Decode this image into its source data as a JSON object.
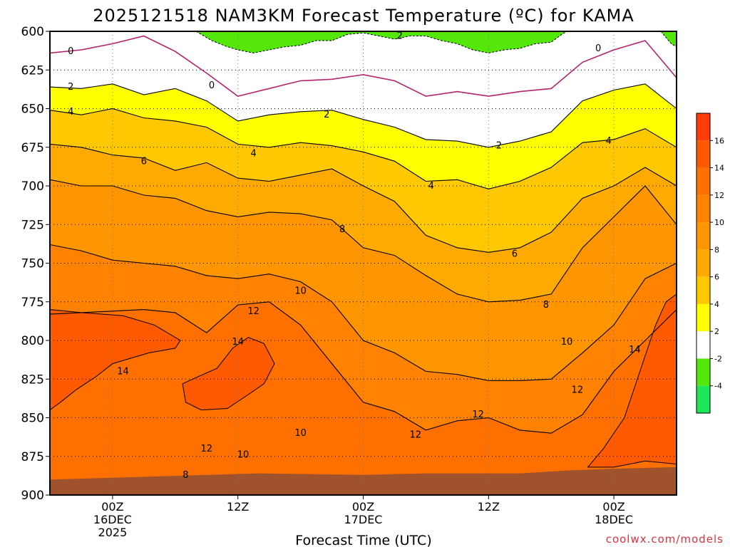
{
  "chart_data": {
    "type": "heatmap",
    "title": "2025121518 NAM3KM Forecast Temperature (ºC) for KAMA",
    "xlabel": "Forecast Time (UTC)",
    "ylabel": "",
    "y_unit": "hPa",
    "y_ticks": [
      600,
      625,
      650,
      675,
      700,
      725,
      750,
      775,
      800,
      825,
      850,
      875,
      900
    ],
    "ylim": [
      900,
      600
    ],
    "x_unit": "hours since 2025-12-15 18Z",
    "xlim": [
      0,
      60
    ],
    "x_ticks": [
      {
        "hour": 6,
        "lines": [
          "00Z",
          "16DEC",
          "2025"
        ]
      },
      {
        "hour": 18,
        "lines": [
          "12Z"
        ]
      },
      {
        "hour": 30,
        "lines": [
          "00Z",
          "17DEC"
        ]
      },
      {
        "hour": 42,
        "lines": [
          "12Z"
        ]
      },
      {
        "hour": 54,
        "lines": [
          "00Z",
          "18DEC"
        ]
      }
    ],
    "grid": true,
    "colorbar": {
      "labels": [
        "16",
        "14",
        "12",
        "10",
        "8",
        "6",
        "4",
        "2",
        "-2",
        "-4"
      ],
      "bands": [
        {
          "range": [
            16,
            18
          ],
          "color": "#ff3c0a"
        },
        {
          "range": [
            14,
            16
          ],
          "color": "#ff5a00"
        },
        {
          "range": [
            12,
            14
          ],
          "color": "#ff7000"
        },
        {
          "range": [
            10,
            12
          ],
          "color": "#ff8200"
        },
        {
          "range": [
            8,
            10
          ],
          "color": "#ff9600"
        },
        {
          "range": [
            6,
            8
          ],
          "color": "#ffaa00"
        },
        {
          "range": [
            4,
            6
          ],
          "color": "#ffc800"
        },
        {
          "range": [
            2,
            4
          ],
          "color": "#ffff00"
        },
        {
          "range": [
            -2,
            2
          ],
          "color": "#ffffff"
        },
        {
          "range": [
            -4,
            -2
          ],
          "color": "#55e60a"
        },
        {
          "range": [
            -6,
            -4
          ],
          "color": "#1ee65a"
        }
      ]
    },
    "surface_color": "#a0522d",
    "freezing_line_color": "#b4226e",
    "band_fills": [
      "#ffc800",
      "#ffaa00",
      "#ff9600",
      "#ff8200",
      "#ff7000"
    ],
    "contours": [
      {
        "level": 0,
        "color": "#b4226e",
        "points": [
          [
            0,
            614
          ],
          [
            3,
            612
          ],
          [
            6,
            608
          ],
          [
            9,
            603
          ],
          [
            12,
            613
          ],
          [
            15,
            627
          ],
          [
            18,
            642
          ],
          [
            21,
            637
          ],
          [
            24,
            632
          ],
          [
            27,
            631
          ],
          [
            30,
            628
          ],
          [
            33,
            632
          ],
          [
            36,
            642
          ],
          [
            39,
            639
          ],
          [
            42,
            642
          ],
          [
            45,
            639
          ],
          [
            48,
            637
          ],
          [
            51,
            620
          ],
          [
            54,
            612
          ],
          [
            57,
            606
          ],
          [
            60,
            630
          ]
        ]
      },
      {
        "level": 2,
        "color": "#000000",
        "points": [
          [
            0,
            636
          ],
          [
            3,
            637
          ],
          [
            6,
            634
          ],
          [
            9,
            641
          ],
          [
            12,
            637
          ],
          [
            15,
            645
          ],
          [
            18,
            658
          ],
          [
            21,
            654
          ],
          [
            24,
            652
          ],
          [
            27,
            651
          ],
          [
            30,
            657
          ],
          [
            33,
            662
          ],
          [
            36,
            670
          ],
          [
            39,
            671
          ],
          [
            42,
            675
          ],
          [
            45,
            671
          ],
          [
            48,
            665
          ],
          [
            51,
            645
          ],
          [
            54,
            638
          ],
          [
            57,
            634
          ],
          [
            60,
            650
          ]
        ]
      },
      {
        "level": 4,
        "color": "#000000",
        "points": [
          [
            0,
            651
          ],
          [
            3,
            654
          ],
          [
            6,
            650
          ],
          [
            9,
            656
          ],
          [
            12,
            658
          ],
          [
            15,
            662
          ],
          [
            18,
            673
          ],
          [
            21,
            675
          ],
          [
            24,
            672
          ],
          [
            27,
            674
          ],
          [
            30,
            678
          ],
          [
            33,
            684
          ],
          [
            36,
            697
          ],
          [
            39,
            696
          ],
          [
            42,
            702
          ],
          [
            45,
            697
          ],
          [
            48,
            688
          ],
          [
            51,
            672
          ],
          [
            54,
            670
          ],
          [
            57,
            663
          ],
          [
            60,
            675
          ]
        ]
      },
      {
        "level": 6,
        "color": "#000000",
        "points": [
          [
            0,
            673
          ],
          [
            3,
            675
          ],
          [
            6,
            680
          ],
          [
            9,
            682
          ],
          [
            12,
            690
          ],
          [
            15,
            685
          ],
          [
            18,
            695
          ],
          [
            21,
            697
          ],
          [
            24,
            693
          ],
          [
            27,
            689
          ],
          [
            30,
            700
          ],
          [
            33,
            710
          ],
          [
            36,
            732
          ],
          [
            39,
            740
          ],
          [
            42,
            743
          ],
          [
            45,
            740
          ],
          [
            48,
            730
          ],
          [
            51,
            708
          ],
          [
            54,
            700
          ],
          [
            57,
            688
          ],
          [
            60,
            700
          ]
        ]
      },
      {
        "level": 8,
        "color": "#000000",
        "points": [
          [
            0,
            696
          ],
          [
            3,
            700
          ],
          [
            6,
            700
          ],
          [
            9,
            706
          ],
          [
            12,
            708
          ],
          [
            15,
            716
          ],
          [
            18,
            720
          ],
          [
            21,
            717
          ],
          [
            24,
            718
          ],
          [
            27,
            722
          ],
          [
            30,
            740
          ],
          [
            33,
            745
          ],
          [
            36,
            758
          ],
          [
            39,
            770
          ],
          [
            42,
            775
          ],
          [
            45,
            774
          ],
          [
            48,
            770
          ],
          [
            51,
            740
          ],
          [
            54,
            720
          ],
          [
            57,
            700
          ],
          [
            60,
            725
          ]
        ]
      },
      {
        "level": 10,
        "color": "#000000",
        "points": [
          [
            0,
            738
          ],
          [
            3,
            742
          ],
          [
            6,
            748
          ],
          [
            9,
            750
          ],
          [
            12,
            752
          ],
          [
            15,
            758
          ],
          [
            18,
            760
          ],
          [
            21,
            757
          ],
          [
            24,
            762
          ],
          [
            27,
            775
          ],
          [
            30,
            800
          ],
          [
            33,
            808
          ],
          [
            36,
            820
          ],
          [
            39,
            822
          ],
          [
            42,
            826
          ],
          [
            45,
            826
          ],
          [
            48,
            825
          ],
          [
            51,
            808
          ],
          [
            54,
            790
          ],
          [
            57,
            760
          ],
          [
            60,
            750
          ]
        ]
      },
      {
        "level": 12,
        "color": "#000000",
        "points": [
          [
            0,
            783
          ],
          [
            3,
            782
          ],
          [
            6,
            781
          ],
          [
            9,
            780
          ],
          [
            12,
            782
          ],
          [
            15,
            795
          ],
          [
            18,
            777
          ],
          [
            21,
            775
          ],
          [
            24,
            790
          ],
          [
            27,
            815
          ],
          [
            30,
            840
          ],
          [
            33,
            846
          ],
          [
            36,
            858
          ],
          [
            39,
            852
          ],
          [
            42,
            850
          ],
          [
            45,
            858
          ],
          [
            48,
            860
          ],
          [
            51,
            848
          ],
          [
            54,
            820
          ],
          [
            57,
            800
          ],
          [
            60,
            780
          ]
        ]
      }
    ],
    "label_positions": [
      {
        "text": "0",
        "x": 2,
        "p": 613
      },
      {
        "text": "0",
        "x": 15.5,
        "p": 635
      },
      {
        "text": "0",
        "x": 52.5,
        "p": 611
      },
      {
        "text": "2",
        "x": 2,
        "p": 636
      },
      {
        "text": "2",
        "x": 26.5,
        "p": 654
      },
      {
        "text": "2",
        "x": 33.5,
        "p": 603
      },
      {
        "text": "2",
        "x": 43,
        "p": 674
      },
      {
        "text": "4",
        "x": 2,
        "p": 652
      },
      {
        "text": "4",
        "x": 19.5,
        "p": 679
      },
      {
        "text": "4",
        "x": 36.5,
        "p": 700
      },
      {
        "text": "4",
        "x": 53.5,
        "p": 671
      },
      {
        "text": "6",
        "x": 9,
        "p": 684
      },
      {
        "text": "6",
        "x": 44.5,
        "p": 744
      },
      {
        "text": "8",
        "x": 28,
        "p": 728
      },
      {
        "text": "8",
        "x": 47.5,
        "p": 777
      },
      {
        "text": "8",
        "x": 13,
        "p": 887
      },
      {
        "text": "10",
        "x": 24,
        "p": 768
      },
      {
        "text": "10",
        "x": 49.5,
        "p": 801
      },
      {
        "text": "10",
        "x": 24,
        "p": 860
      },
      {
        "text": "10",
        "x": 18.5,
        "p": 874
      },
      {
        "text": "12",
        "x": 19.5,
        "p": 781
      },
      {
        "text": "12",
        "x": 50.5,
        "p": 832
      },
      {
        "text": "12",
        "x": 41,
        "p": 848
      },
      {
        "text": "12",
        "x": 35,
        "p": 861
      },
      {
        "text": "12",
        "x": 15,
        "p": 870
      },
      {
        "text": "14",
        "x": 18,
        "p": 801
      },
      {
        "text": "14",
        "x": 7,
        "p": 820
      },
      {
        "text": "14",
        "x": 56,
        "p": 806
      }
    ],
    "warm_cores": [
      {
        "level": 14,
        "color": "#ff5a00",
        "points": [
          [
            0,
            845
          ],
          [
            1,
            840
          ],
          [
            2.5,
            832
          ],
          [
            4.5,
            823
          ],
          [
            6,
            815
          ],
          [
            7.5,
            812
          ],
          [
            9.5,
            808
          ],
          [
            12,
            805
          ],
          [
            12.5,
            800
          ],
          [
            10,
            790
          ],
          [
            7,
            784
          ],
          [
            3,
            782
          ],
          [
            0,
            780
          ]
        ]
      },
      {
        "level": 14,
        "color": "#ff5a00",
        "points": [
          [
            12.7,
            828
          ],
          [
            14,
            824
          ],
          [
            16,
            818
          ],
          [
            17.5,
            805
          ],
          [
            19,
            798
          ],
          [
            20.5,
            802
          ],
          [
            21.5,
            815
          ],
          [
            20.5,
            828
          ],
          [
            19,
            835
          ],
          [
            17,
            844
          ],
          [
            14.5,
            845
          ],
          [
            13,
            840
          ]
        ]
      },
      {
        "level": 14,
        "color": "#ff5a00",
        "points": [
          [
            51.5,
            882
          ],
          [
            53,
            870
          ],
          [
            55,
            850
          ],
          [
            56,
            830
          ],
          [
            57,
            810
          ],
          [
            58,
            790
          ],
          [
            59,
            775
          ],
          [
            60,
            770
          ],
          [
            60,
            880
          ],
          [
            57,
            878
          ],
          [
            54,
            882
          ]
        ]
      }
    ],
    "cold_top": {
      "level": 2,
      "color": "#55e60a",
      "points": [
        [
          14,
          600
        ],
        [
          15.5,
          606
        ],
        [
          17,
          610
        ],
        [
          18,
          612
        ],
        [
          19.5,
          614
        ],
        [
          21,
          612
        ],
        [
          22.5,
          610
        ],
        [
          24,
          609
        ],
        [
          25.5,
          606
        ],
        [
          27,
          606
        ],
        [
          28.5,
          602
        ],
        [
          30,
          601
        ],
        [
          31.5,
          603
        ],
        [
          33,
          605
        ],
        [
          34.5,
          603
        ],
        [
          36,
          603
        ],
        [
          37.5,
          606
        ],
        [
          39,
          608
        ],
        [
          40.5,
          612
        ],
        [
          42,
          614
        ],
        [
          43.5,
          612
        ],
        [
          45,
          611
        ],
        [
          46.5,
          608
        ],
        [
          48,
          607
        ],
        [
          49,
          602
        ],
        [
          49.5,
          600
        ]
      ]
    },
    "cold_top_right": {
      "points": [
        [
          58.5,
          600
        ],
        [
          59,
          604
        ],
        [
          59.5,
          608
        ],
        [
          60,
          610
        ],
        [
          60,
          600
        ]
      ]
    }
  },
  "credit": "coolwx.com/models"
}
